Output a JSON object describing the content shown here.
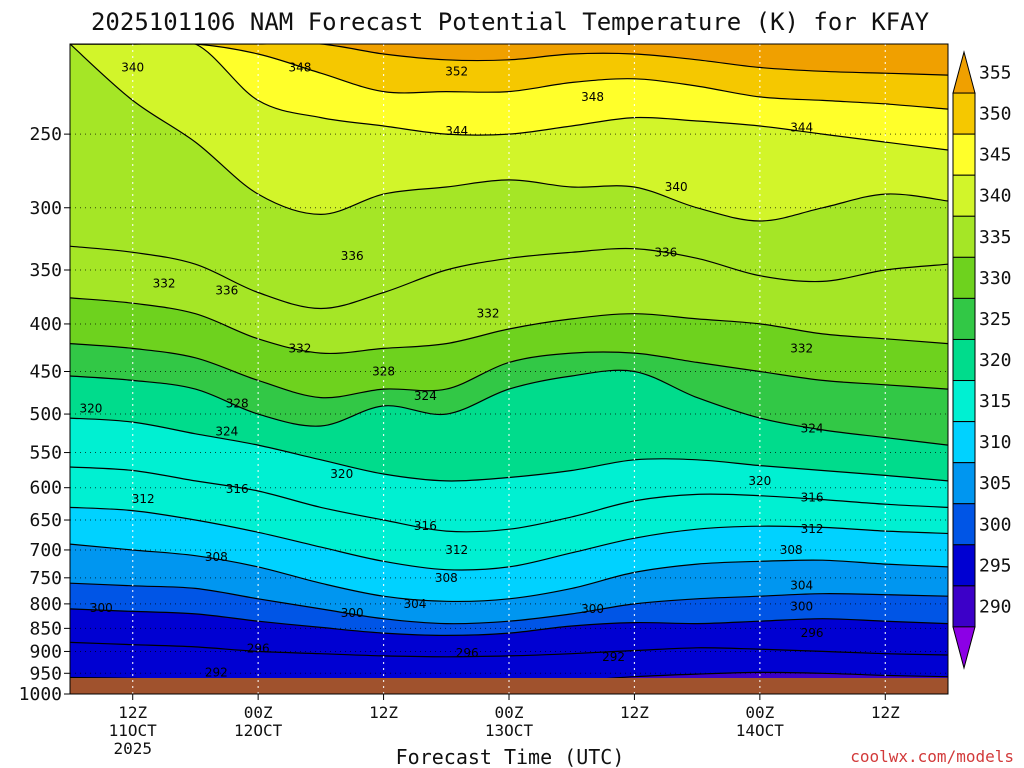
{
  "chart_data": {
    "type": "heatmap",
    "title": "2025101106 NAM Forecast Potential Temperature (K) for KFAY",
    "xlabel": "Forecast Time (UTC)",
    "credit": "coolwx.com/models",
    "pressure_levels": [
      250,
      300,
      350,
      400,
      450,
      500,
      550,
      600,
      650,
      700,
      750,
      800,
      850,
      900,
      950,
      1000
    ],
    "pressure_labels": [
      "250",
      "300",
      "350",
      "400",
      "450",
      "500",
      "550",
      "600",
      "650",
      "700",
      "750",
      "800",
      "850",
      "900",
      "950",
      "1000"
    ],
    "ylim": [
      1000,
      200
    ],
    "time_range_hours": [
      0,
      84
    ],
    "time_ticks": [
      {
        "hour": 6,
        "label": "12Z",
        "sub1": "11OCT",
        "sub2": "2025"
      },
      {
        "hour": 18,
        "label": "00Z",
        "sub1": "12OCT",
        "sub2": ""
      },
      {
        "hour": 30,
        "label": "12Z",
        "sub1": "",
        "sub2": ""
      },
      {
        "hour": 42,
        "label": "00Z",
        "sub1": "13OCT",
        "sub2": ""
      },
      {
        "hour": 54,
        "label": "12Z",
        "sub1": "",
        "sub2": ""
      },
      {
        "hour": 66,
        "label": "00Z",
        "sub1": "14OCT",
        "sub2": ""
      },
      {
        "hour": 78,
        "label": "12Z",
        "sub1": "",
        "sub2": ""
      }
    ],
    "colorbar": {
      "levels": [
        355,
        350,
        345,
        340,
        335,
        330,
        325,
        320,
        315,
        310,
        305,
        300,
        295,
        290
      ],
      "labels": [
        "355",
        "350",
        "345",
        "340",
        "335",
        "330",
        "325",
        "320",
        "315",
        "310",
        "305",
        "300",
        "295",
        "290"
      ],
      "colors": [
        "#f0a000",
        "#f5c800",
        "#ffff2a",
        "#d2f52a",
        "#a5e626",
        "#6ed21e",
        "#32c846",
        "#00dc8c",
        "#00f0d2",
        "#00d2ff",
        "#0096f0",
        "#0055e6",
        "#0000d2",
        "#3c00c8",
        "#8c00e6"
      ]
    },
    "isentropes": [
      {
        "theta": 292,
        "pressures": [
          960,
          962,
          965,
          968,
          970,
          974,
          978,
          975,
          968,
          958,
          952,
          948,
          950,
          955,
          958
        ]
      },
      {
        "theta": 296,
        "pressures": [
          880,
          885,
          890,
          900,
          905,
          910,
          912,
          910,
          905,
          898,
          892,
          895,
          900,
          905,
          908
        ]
      },
      {
        "theta": 300,
        "pressures": [
          810,
          815,
          820,
          835,
          848,
          860,
          865,
          860,
          845,
          838,
          840,
          835,
          830,
          835,
          840
        ]
      },
      {
        "theta": 304,
        "pressures": [
          760,
          765,
          770,
          790,
          810,
          830,
          840,
          835,
          820,
          800,
          790,
          785,
          780,
          782,
          785
        ]
      },
      {
        "theta": 308,
        "pressures": [
          690,
          700,
          710,
          730,
          760,
          785,
          795,
          790,
          770,
          740,
          725,
          720,
          718,
          725,
          730
        ]
      },
      {
        "theta": 312,
        "pressures": [
          630,
          635,
          650,
          670,
          695,
          720,
          735,
          730,
          705,
          680,
          665,
          660,
          662,
          668,
          672
        ]
      },
      {
        "theta": 316,
        "pressures": [
          570,
          575,
          590,
          605,
          630,
          650,
          668,
          665,
          645,
          620,
          610,
          612,
          618,
          625,
          630
        ]
      },
      {
        "theta": 320,
        "pressures": [
          505,
          510,
          525,
          540,
          560,
          580,
          590,
          585,
          575,
          560,
          560,
          568,
          575,
          582,
          590
        ]
      },
      {
        "theta": 324,
        "pressures": [
          455,
          460,
          470,
          500,
          515,
          490,
          500,
          470,
          455,
          450,
          480,
          505,
          520,
          530,
          540
        ]
      },
      {
        "theta": 328,
        "pressures": [
          420,
          425,
          435,
          460,
          480,
          470,
          470,
          440,
          430,
          430,
          440,
          450,
          460,
          465,
          470
        ]
      },
      {
        "theta": 332,
        "pressures": [
          375,
          380,
          390,
          415,
          430,
          425,
          420,
          405,
          395,
          390,
          395,
          400,
          410,
          415,
          420
        ]
      },
      {
        "theta": 336,
        "pressures": [
          330,
          335,
          345,
          370,
          385,
          370,
          350,
          340,
          335,
          332,
          340,
          355,
          360,
          350,
          345
        ]
      },
      {
        "theta": 340,
        "pressures": [
          200,
          230,
          255,
          290,
          305,
          290,
          285,
          280,
          285,
          285,
          300,
          310,
          300,
          290,
          295
        ]
      },
      {
        "theta": 344,
        "pressures": [
          200,
          200,
          200,
          230,
          240,
          245,
          250,
          250,
          245,
          240,
          242,
          245,
          250,
          255,
          260
        ]
      },
      {
        "theta": 348,
        "pressures": [
          200,
          200,
          200,
          205,
          215,
          225,
          225,
          225,
          220,
          218,
          222,
          228,
          230,
          232,
          235
        ]
      },
      {
        "theta": 352,
        "pressures": [
          200,
          200,
          200,
          200,
          200,
          205,
          208,
          208,
          205,
          205,
          208,
          212,
          214,
          215,
          216
        ]
      }
    ],
    "contour_labels": [
      {
        "text": "340",
        "hour": 6,
        "p": 212
      },
      {
        "text": "348",
        "hour": 22,
        "p": 212
      },
      {
        "text": "352",
        "hour": 37,
        "p": 214
      },
      {
        "text": "348",
        "hour": 50,
        "p": 228
      },
      {
        "text": "344",
        "hour": 37,
        "p": 248
      },
      {
        "text": "344",
        "hour": 70,
        "p": 246
      },
      {
        "text": "340",
        "hour": 58,
        "p": 285
      },
      {
        "text": "336",
        "hour": 27,
        "p": 338
      },
      {
        "text": "336",
        "hour": 57,
        "p": 335
      },
      {
        "text": "336",
        "hour": 15,
        "p": 368
      },
      {
        "text": "332",
        "hour": 9,
        "p": 362
      },
      {
        "text": "332",
        "hour": 40,
        "p": 390
      },
      {
        "text": "332",
        "hour": 22,
        "p": 425
      },
      {
        "text": "332",
        "hour": 70,
        "p": 425
      },
      {
        "text": "328",
        "hour": 30,
        "p": 450
      },
      {
        "text": "328",
        "hour": 16,
        "p": 487
      },
      {
        "text": "324",
        "hour": 34,
        "p": 478
      },
      {
        "text": "324",
        "hour": 71,
        "p": 518
      },
      {
        "text": "324",
        "hour": 15,
        "p": 522
      },
      {
        "text": "320",
        "hour": 2,
        "p": 493
      },
      {
        "text": "320",
        "hour": 26,
        "p": 580
      },
      {
        "text": "320",
        "hour": 66,
        "p": 590
      },
      {
        "text": "316",
        "hour": 16,
        "p": 602
      },
      {
        "text": "316",
        "hour": 34,
        "p": 660
      },
      {
        "text": "316",
        "hour": 71,
        "p": 615
      },
      {
        "text": "312",
        "hour": 7,
        "p": 617
      },
      {
        "text": "312",
        "hour": 37,
        "p": 700
      },
      {
        "text": "312",
        "hour": 71,
        "p": 665
      },
      {
        "text": "308",
        "hour": 14,
        "p": 712
      },
      {
        "text": "308",
        "hour": 36,
        "p": 750
      },
      {
        "text": "308",
        "hour": 69,
        "p": 700
      },
      {
        "text": "304",
        "hour": 33,
        "p": 800
      },
      {
        "text": "304",
        "hour": 70,
        "p": 764
      },
      {
        "text": "300",
        "hour": 3,
        "p": 808
      },
      {
        "text": "300",
        "hour": 27,
        "p": 818
      },
      {
        "text": "300",
        "hour": 50,
        "p": 810
      },
      {
        "text": "300",
        "hour": 70,
        "p": 805
      },
      {
        "text": "296",
        "hour": 18,
        "p": 893
      },
      {
        "text": "296",
        "hour": 38,
        "p": 903
      },
      {
        "text": "296",
        "hour": 71,
        "p": 860
      },
      {
        "text": "292",
        "hour": 14,
        "p": 948
      },
      {
        "text": "292",
        "hour": 52,
        "p": 912
      }
    ]
  }
}
